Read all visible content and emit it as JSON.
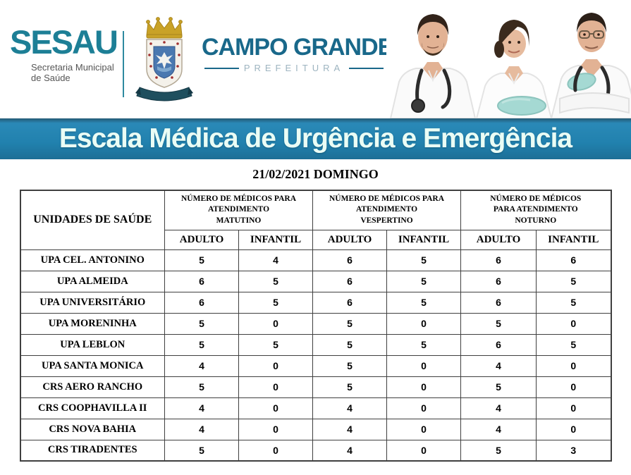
{
  "header": {
    "sesau_logo": "SESAU",
    "sesau_subtitle_line1": "Secretaria Municipal",
    "sesau_subtitle_line2": "de Saúde",
    "city_name": "CAMPO GRANDE",
    "city_label": "PREFEITURA"
  },
  "banner": {
    "title": "Escala Médica de Urgência e Emergência"
  },
  "date_heading": "21/02/2021 DOMINGO",
  "table": {
    "unit_column_header": "UNIDADES DE SAÚDE",
    "groups": [
      {
        "lines": [
          "NÚMERO DE MÉDICOS PARA",
          "ATENDIMENTO",
          "MATUTINO"
        ]
      },
      {
        "lines": [
          "NÚMERO DE MÉDICOS PARA",
          "ATENDIMENTO",
          "VESPERTINO"
        ]
      },
      {
        "lines": [
          "NÚMERO DE MÉDICOS",
          "PARA ATENDIMENTO",
          "NOTURNO"
        ]
      }
    ],
    "sub_headers": [
      "ADULTO",
      "INFANTIL",
      "ADULTO",
      "INFANTIL",
      "ADULTO",
      "INFANTIL"
    ],
    "rows": [
      {
        "unit": "UPA CEL. ANTONINO",
        "values": [
          5,
          4,
          6,
          5,
          6,
          6
        ]
      },
      {
        "unit": "UPA ALMEIDA",
        "values": [
          6,
          5,
          6,
          5,
          6,
          5
        ]
      },
      {
        "unit": "UPA UNIVERSITÁRIO",
        "values": [
          6,
          5,
          6,
          5,
          6,
          5
        ]
      },
      {
        "unit": "UPA MORENINHA",
        "values": [
          5,
          0,
          5,
          0,
          5,
          0
        ]
      },
      {
        "unit": "UPA LEBLON",
        "values": [
          5,
          5,
          5,
          5,
          6,
          5
        ]
      },
      {
        "unit": "UPA SANTA MONICA",
        "values": [
          4,
          0,
          5,
          0,
          4,
          0
        ]
      },
      {
        "unit": "CRS AERO RANCHO",
        "values": [
          5,
          0,
          5,
          0,
          5,
          0
        ]
      },
      {
        "unit": "CRS COOPHAVILLA II",
        "values": [
          4,
          0,
          4,
          0,
          4,
          0
        ]
      },
      {
        "unit": "CRS NOVA BAHIA",
        "values": [
          4,
          0,
          4,
          0,
          4,
          0
        ]
      },
      {
        "unit": "CRS TIRADENTES",
        "values": [
          5,
          0,
          4,
          0,
          5,
          3
        ]
      }
    ]
  },
  "icons": {
    "crest": "campo-grande-coat-of-arms",
    "photo": "three-doctors-photo"
  },
  "colors": {
    "sesau_teal": "#1d7f96",
    "city_teal": "#19688a",
    "banner_blue": "#2181ae",
    "banner_text": "#eafdf5",
    "mask_teal": "#a5d9d3",
    "table_border": "#3f3f3f"
  }
}
